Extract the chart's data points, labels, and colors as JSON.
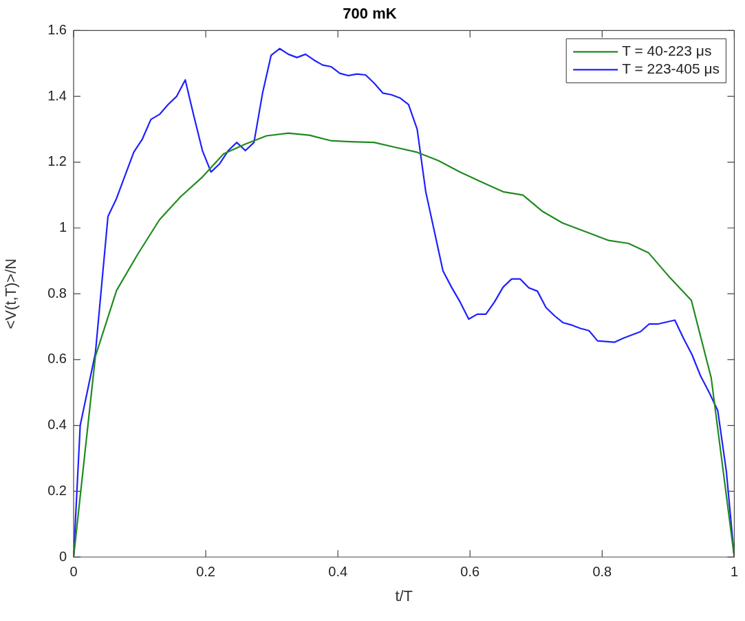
{
  "chart_data": {
    "type": "line",
    "title": "700 mK",
    "xlabel": "t/T",
    "ylabel": "<V(t,T)>/N",
    "xlim": [
      0,
      1
    ],
    "xticks": [
      0,
      0.2,
      0.4,
      0.6,
      0.8,
      1
    ],
    "ylim": [
      0,
      1.6
    ],
    "yticks": [
      0,
      0.2,
      0.4,
      0.6,
      0.8,
      1,
      1.2,
      1.4,
      1.6
    ],
    "legend": "top right",
    "marker": "none",
    "line_style": "solid",
    "series": [
      {
        "name": "T = 40-223 μs",
        "color": "#1f8a1f",
        "x": [
          0,
          0.033,
          0.065,
          0.097,
          0.13,
          0.162,
          0.195,
          0.227,
          0.26,
          0.292,
          0.325,
          0.357,
          0.39,
          0.422,
          0.455,
          0.487,
          0.52,
          0.552,
          0.585,
          0.617,
          0.65,
          0.68,
          0.71,
          0.74,
          0.78,
          0.81,
          0.84,
          0.87,
          0.9,
          0.935,
          0.965,
          1
        ],
        "values": [
          0,
          0.61,
          0.81,
          0.92,
          1.025,
          1.095,
          1.155,
          1.225,
          1.255,
          1.28,
          1.288,
          1.282,
          1.265,
          1.262,
          1.26,
          1.245,
          1.23,
          1.205,
          1.17,
          1.14,
          1.11,
          1.1,
          1.05,
          1.015,
          0.985,
          0.962,
          0.953,
          0.925,
          0.855,
          0.78,
          0.545,
          0
        ]
      },
      {
        "name": "T = 223-405 μs",
        "color": "#1f1fff",
        "x": [
          0,
          0.01,
          0.033,
          0.052,
          0.065,
          0.078,
          0.091,
          0.104,
          0.117,
          0.13,
          0.143,
          0.156,
          0.169,
          0.182,
          0.195,
          0.208,
          0.221,
          0.234,
          0.247,
          0.26,
          0.273,
          0.286,
          0.299,
          0.312,
          0.325,
          0.338,
          0.351,
          0.364,
          0.377,
          0.39,
          0.403,
          0.416,
          0.429,
          0.442,
          0.455,
          0.468,
          0.481,
          0.494,
          0.507,
          0.52,
          0.533,
          0.546,
          0.559,
          0.572,
          0.585,
          0.598,
          0.611,
          0.624,
          0.637,
          0.65,
          0.663,
          0.676,
          0.689,
          0.702,
          0.715,
          0.728,
          0.741,
          0.754,
          0.767,
          0.78,
          0.793,
          0.819,
          0.832,
          0.845,
          0.858,
          0.871,
          0.884,
          0.91,
          0.923,
          0.936,
          0.949,
          0.962,
          0.975,
          0.988,
          1
        ],
        "values": [
          0,
          0.4,
          0.62,
          1.035,
          1.09,
          1.16,
          1.23,
          1.27,
          1.33,
          1.345,
          1.375,
          1.4,
          1.45,
          1.34,
          1.235,
          1.17,
          1.195,
          1.235,
          1.26,
          1.235,
          1.26,
          1.41,
          1.525,
          1.545,
          1.528,
          1.518,
          1.528,
          1.51,
          1.495,
          1.49,
          1.47,
          1.463,
          1.468,
          1.465,
          1.44,
          1.41,
          1.405,
          1.395,
          1.375,
          1.3,
          1.11,
          0.99,
          0.87,
          0.82,
          0.775,
          0.723,
          0.738,
          0.738,
          0.775,
          0.82,
          0.845,
          0.845,
          0.818,
          0.808,
          0.758,
          0.733,
          0.712,
          0.705,
          0.695,
          0.688,
          0.657,
          0.653,
          0.665,
          0.675,
          0.685,
          0.708,
          0.708,
          0.72,
          0.665,
          0.615,
          0.55,
          0.5,
          0.445,
          0.26,
          0
        ]
      }
    ]
  }
}
